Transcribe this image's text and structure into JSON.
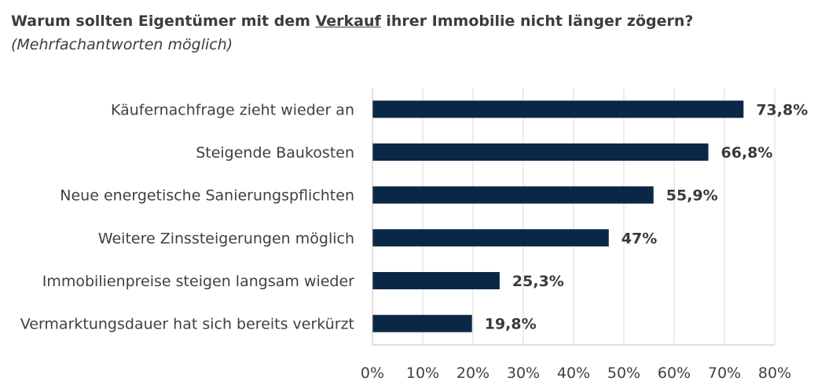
{
  "chart_data": {
    "type": "bar",
    "orientation": "horizontal",
    "title": {
      "part1": "Warum sollten Eigentümer mit dem ",
      "underlined": "Verkauf",
      "part2": " ihrer Immobilie nicht länger zögern?",
      "subtitle": "(Mehrfachantworten möglich)"
    },
    "categories": [
      "Käufernachfrage zieht wieder an",
      "Steigende Baukosten",
      "Neue energetische Sanierungspflichten",
      "Weitere Zinssteigerungen möglich",
      "Immobilienpreise steigen langsam wieder",
      "Vermarktungsdauer hat sich bereits verkürzt"
    ],
    "values": [
      73.8,
      66.8,
      55.9,
      47,
      25.3,
      19.8
    ],
    "value_labels": [
      "73,8%",
      "66,8%",
      "55,9%",
      "47%",
      "25,3%",
      "19,8%"
    ],
    "xlim": [
      0,
      80
    ],
    "x_ticks": [
      "0%",
      "10%",
      "20%",
      "30%",
      "40%",
      "50%",
      "60%",
      "70%",
      "80%"
    ],
    "grid": true,
    "bar_color": "#0b2747",
    "grid_color": "#d9d9d9"
  }
}
